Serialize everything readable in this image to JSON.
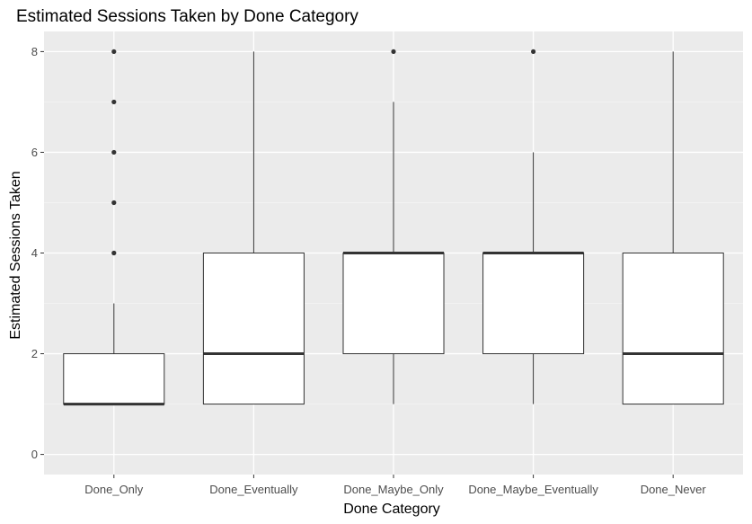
{
  "chart_data": {
    "type": "boxplot",
    "title": "Estimated Sessions Taken by Done Category",
    "xlabel": "Done Category",
    "ylabel": "Estimated Sessions Taken",
    "categories": [
      "Done_Only",
      "Done_Eventually",
      "Done_Maybe_Only",
      "Done_Maybe_Eventually",
      "Done_Never"
    ],
    "ylim": [
      -0.4,
      8.4
    ],
    "yticks": [
      0,
      2,
      4,
      6,
      8
    ],
    "boxes": [
      {
        "category": "Done_Only",
        "lower_whisker": 1,
        "q1": 1,
        "median": 1,
        "q3": 2,
        "upper_whisker": 3,
        "outliers": [
          4,
          5,
          6,
          7,
          8
        ]
      },
      {
        "category": "Done_Eventually",
        "lower_whisker": 1,
        "q1": 1,
        "median": 2,
        "q3": 4,
        "upper_whisker": 8,
        "outliers": []
      },
      {
        "category": "Done_Maybe_Only",
        "lower_whisker": 1,
        "q1": 2,
        "median": 4,
        "q3": 4,
        "upper_whisker": 7,
        "outliers": [
          8
        ]
      },
      {
        "category": "Done_Maybe_Eventually",
        "lower_whisker": 1,
        "q1": 2,
        "median": 4,
        "q3": 4,
        "upper_whisker": 6,
        "outliers": [
          8
        ]
      },
      {
        "category": "Done_Never",
        "lower_whisker": 1,
        "q1": 1,
        "median": 2,
        "q3": 4,
        "upper_whisker": 8,
        "outliers": []
      }
    ],
    "grid": true,
    "legend": "none",
    "colors": {
      "panel_background": "#ebebeb",
      "grid_major": "#ffffff",
      "grid_minor": "#f5f5f5",
      "box_fill": "#ffffff",
      "box_stroke": "#333333",
      "tick_text": "#4d4d4d"
    }
  }
}
